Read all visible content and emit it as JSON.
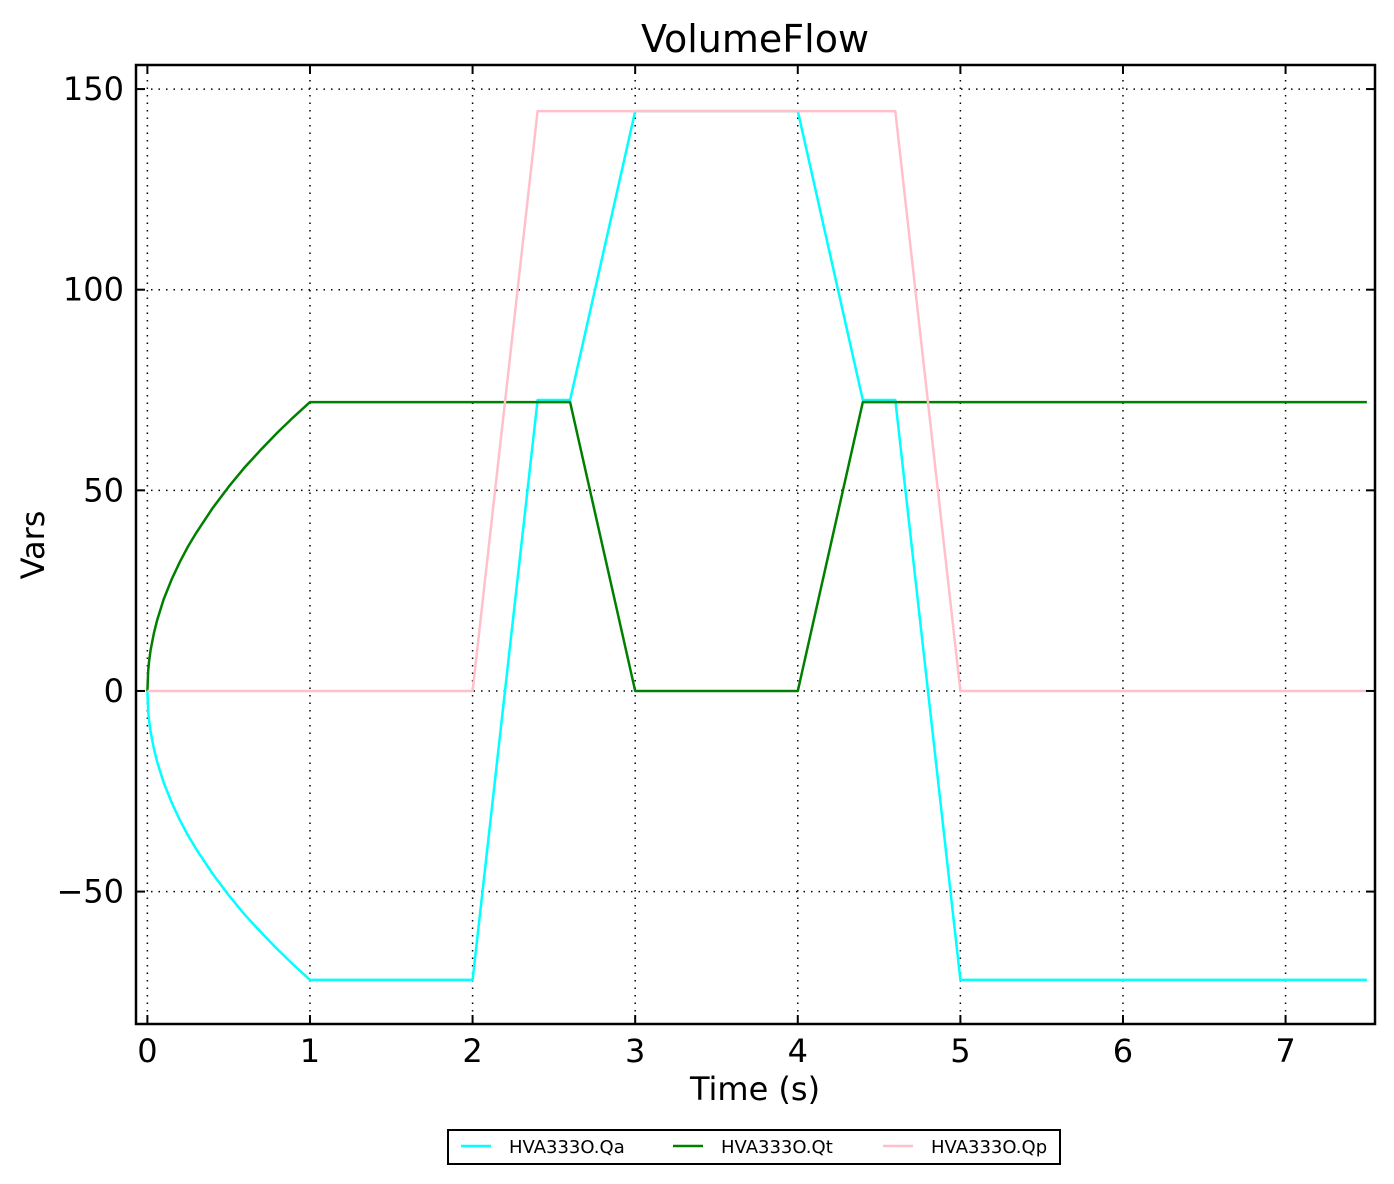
{
  "chart_data": {
    "type": "line",
    "title": "VolumeFlow",
    "xlabel": "Time (s)",
    "ylabel": "Vars",
    "xlim": [
      -0.07,
      7.55
    ],
    "ylim": [
      -83,
      156
    ],
    "xticks": [
      0,
      1,
      2,
      3,
      4,
      5,
      6,
      7
    ],
    "xtick_labels": [
      "0",
      "1",
      "2",
      "3",
      "4",
      "5",
      "6",
      "7"
    ],
    "yticks": [
      -50,
      0,
      50,
      100,
      150
    ],
    "ytick_labels": [
      "−50",
      "0",
      "50",
      "100",
      "150"
    ],
    "grid": true,
    "grid_style": "dotted",
    "legend_position": "bottom-center",
    "series": [
      {
        "name": "HVA333O.Qa",
        "color": "#00ffff",
        "x": [
          0,
          0.005,
          0.01,
          0.02,
          0.04,
          0.06,
          0.1,
          0.15,
          0.2,
          0.25,
          0.3,
          0.4,
          0.5,
          0.6,
          0.7,
          0.8,
          0.9,
          1.0,
          2.0,
          2.4,
          2.6,
          3.0,
          4.0,
          4.4,
          4.6,
          5.0,
          7.5
        ],
        "values": [
          0,
          -5.1,
          -7.2,
          -10.2,
          -14.4,
          -17.6,
          -22.8,
          -27.9,
          -32.2,
          -36.0,
          -39.4,
          -45.5,
          -50.9,
          -55.8,
          -60.2,
          -64.4,
          -68.3,
          -72,
          -72,
          72.5,
          72.5,
          144.5,
          144.5,
          72.5,
          72.5,
          -72,
          -72
        ]
      },
      {
        "name": "HVA333O.Qt",
        "color": "#008000",
        "x": [
          0,
          0.005,
          0.01,
          0.02,
          0.04,
          0.06,
          0.1,
          0.15,
          0.2,
          0.25,
          0.3,
          0.4,
          0.5,
          0.6,
          0.7,
          0.8,
          0.9,
          1.0,
          2.0,
          2.4,
          2.6,
          3.0,
          4.0,
          4.4,
          4.6,
          5.0,
          7.5
        ],
        "values": [
          0,
          5.1,
          7.2,
          10.2,
          14.4,
          17.6,
          22.8,
          27.9,
          32.2,
          36.0,
          39.4,
          45.5,
          50.9,
          55.8,
          60.2,
          64.4,
          68.3,
          72,
          72,
          72,
          72,
          0,
          0,
          72,
          72,
          72,
          72
        ]
      },
      {
        "name": "HVA333O.Qp",
        "color": "#ffc0cb",
        "x": [
          0,
          2.0,
          2.4,
          4.6,
          5.0,
          7.5
        ],
        "values": [
          0,
          0,
          144.5,
          144.5,
          0,
          0
        ]
      }
    ]
  }
}
